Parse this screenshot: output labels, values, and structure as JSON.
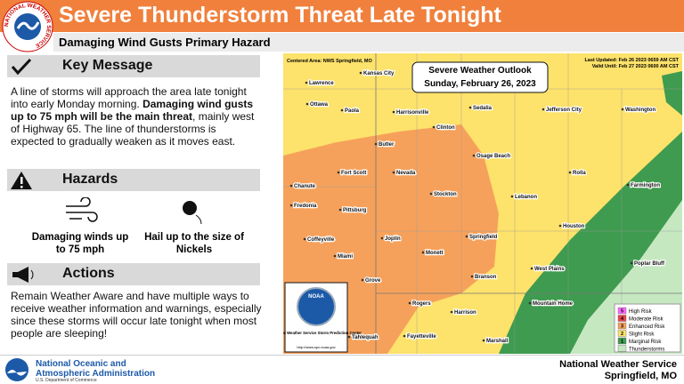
{
  "header": {
    "title": "Severe Thunderstorm Threat Late Tonight",
    "subtitle": "Damaging Wind Gusts Primary Hazard",
    "logo_text": "NATIONAL WEATHER SERVICE"
  },
  "key_message": {
    "heading": "Key Message",
    "text": [
      "A line of storms will approach the area late tonight into early Monday morning. ",
      "Damaging wind gusts up to 75 mph will be the main threat",
      ", mainly west of Highway 65. The line of thunderstorms is expected to gradually weaken as it moves east."
    ]
  },
  "hazards": {
    "heading": "Hazards",
    "items": [
      "Damaging winds up to 75 mph",
      "Hail up to the size of Nickels"
    ]
  },
  "actions": {
    "heading": "Actions",
    "text": "Remain Weather Aware and have multiple ways to receive weather information and warnings, especially since these storms will occur late tonight when most people are sleeping!"
  },
  "map": {
    "centered_area": "Centered Area: NWS Springfield, MO",
    "last_updated": "Last Updated: Feb 26 2023 0659 AM CST",
    "valid_until": "Valid Until: Feb 27 2023 0600 AM CST",
    "title": "Severe Weather Outlook",
    "date": "Sunday, February 26, 2023",
    "cities": [
      "Kansas City",
      "Lawrence",
      "Ottawa",
      "Paola",
      "Harrisonville",
      "Sedalia",
      "Jefferson City",
      "Washington",
      "Clinton",
      "Butler",
      "Osage Beach",
      "Fort Scott",
      "Nevada",
      "Rolla",
      "Chanute",
      "Farmington",
      "Stockton",
      "Lebanon",
      "Fredonia",
      "Pittsburg",
      "Houston",
      "Coffeyville",
      "Joplin",
      "Springfield",
      "Miami",
      "Monett",
      "West Plains",
      "Poplar Bluff",
      "Grove",
      "Branson",
      "Mountain Home",
      "Rogers",
      "Harrison",
      "Tahlequah",
      "Fayetteville",
      "Marshall"
    ],
    "legend": [
      {
        "level": "5",
        "label": "High Risk",
        "color": "#ff66ff"
      },
      {
        "level": "4",
        "label": "Moderate Risk",
        "color": "#e8424a"
      },
      {
        "level": "3",
        "label": "Enhanced Risk",
        "color": "#f6a15b"
      },
      {
        "level": "2",
        "label": "Slight Risk",
        "color": "#fde26b"
      },
      {
        "level": "1",
        "label": "Marginal Risk",
        "color": "#3f9b4f"
      },
      {
        "label": "Thunderstorms",
        "color": "#c6e8c1"
      }
    ],
    "spc": {
      "badge": "NOAA",
      "name": "National Weather Service Storm Prediction Center",
      "url": "http://www.spc.noaa.gov"
    }
  },
  "footer": {
    "agency": [
      "National Oceanic and",
      "Atmospheric Administration"
    ],
    "department": "U.S. Department of Commerce",
    "office": "National Weather Service",
    "location": "Springfield, MO"
  }
}
